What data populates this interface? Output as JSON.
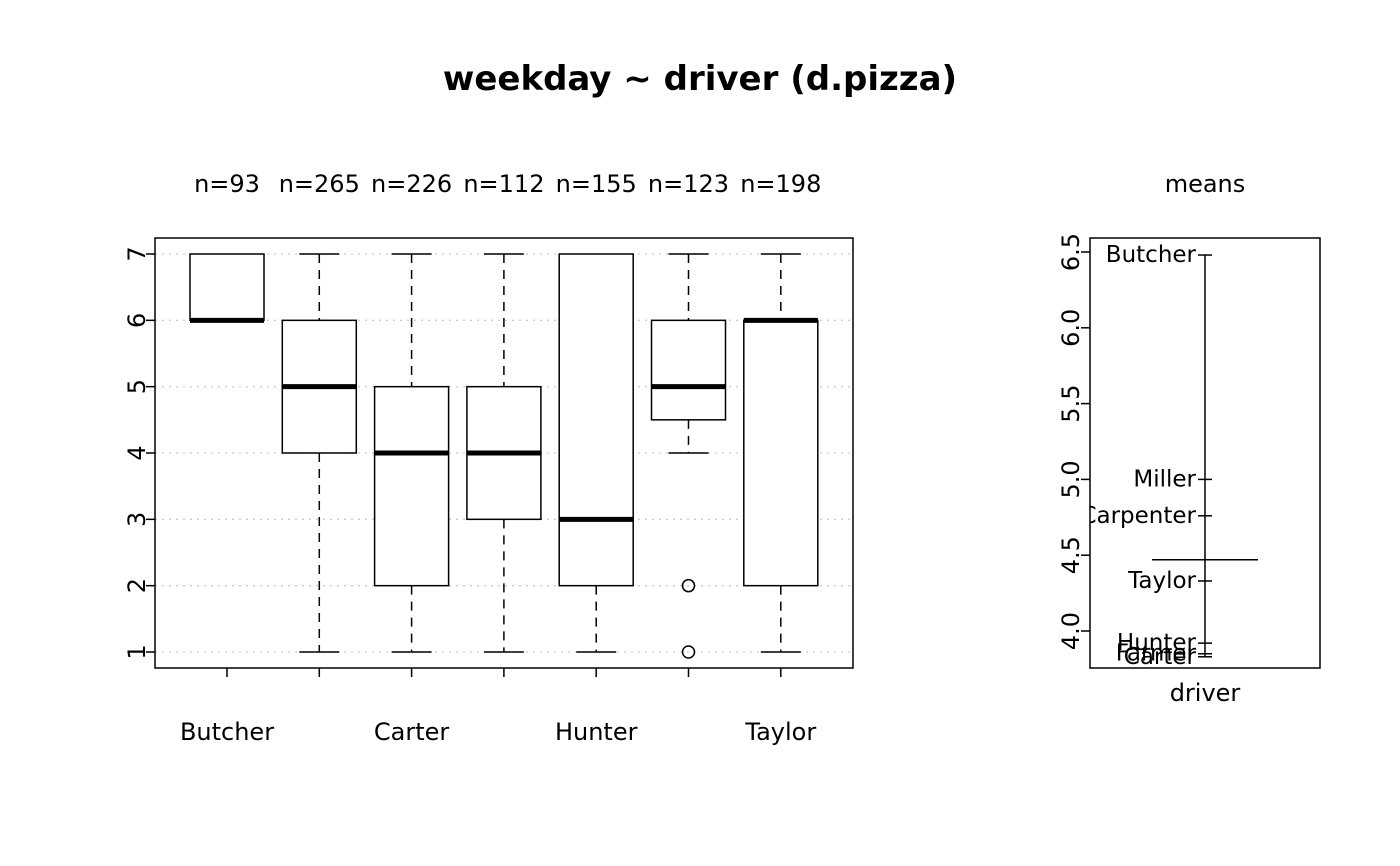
{
  "title": "weekday ~ driver (d.pizza)",
  "chart_data": [
    {
      "type": "boxplot",
      "title": "weekday ~ driver (d.pizza)",
      "categories": [
        "Butcher",
        "Carpenter",
        "Carter",
        "Farmer",
        "Hunter",
        "Miller",
        "Taylor"
      ],
      "x_tick_labels_shown": [
        "Butcher",
        "",
        "Carter",
        "",
        "Hunter",
        "",
        "Taylor"
      ],
      "count_labels": [
        "n=93",
        "n=265",
        "n=226",
        "n=112",
        "n=155",
        "n=123",
        "n=198"
      ],
      "ylim": [
        1,
        7
      ],
      "ytick_values": [
        1,
        2,
        3,
        4,
        5,
        6,
        7
      ],
      "ytick_labels": [
        "1",
        "2",
        "3",
        "4",
        "5",
        "6",
        "7"
      ],
      "grid": "dotted-horizontal",
      "boxes": [
        {
          "group": "Butcher",
          "n": 93,
          "q1": 6,
          "median": 6,
          "q3": 7,
          "whisker_low": 6,
          "whisker_high": 7,
          "outliers": []
        },
        {
          "group": "Carpenter",
          "n": 265,
          "q1": 4,
          "median": 5,
          "q3": 6,
          "whisker_low": 1,
          "whisker_high": 7,
          "outliers": []
        },
        {
          "group": "Carter",
          "n": 226,
          "q1": 2,
          "median": 4,
          "q3": 5,
          "whisker_low": 1,
          "whisker_high": 7,
          "outliers": []
        },
        {
          "group": "Farmer",
          "n": 112,
          "q1": 3,
          "median": 4,
          "q3": 5,
          "whisker_low": 1,
          "whisker_high": 7,
          "outliers": []
        },
        {
          "group": "Hunter",
          "n": 155,
          "q1": 2,
          "median": 3,
          "q3": 7,
          "whisker_low": 1,
          "whisker_high": 7,
          "outliers": []
        },
        {
          "group": "Miller",
          "n": 123,
          "q1": 4.5,
          "median": 5,
          "q3": 6,
          "whisker_low": 4,
          "whisker_high": 7,
          "outliers": [
            2,
            1
          ]
        },
        {
          "group": "Taylor",
          "n": 198,
          "q1": 2,
          "median": 6,
          "q3": 6,
          "whisker_low": 1,
          "whisker_high": 7,
          "outliers": []
        }
      ]
    },
    {
      "type": "means",
      "panel_title": "means",
      "xlabel": "driver",
      "ylim": [
        3.8,
        6.5
      ],
      "ytick_values": [
        4.0,
        4.5,
        5.0,
        5.5,
        6.0,
        6.5
      ],
      "ytick_labels": [
        "4.0",
        "4.5",
        "5.0",
        "5.5",
        "6.0",
        "6.5"
      ],
      "means": [
        {
          "group": "Butcher",
          "value": 6.48
        },
        {
          "group": "Miller",
          "value": 5.0
        },
        {
          "group": "Carpenter",
          "value": 4.76
        },
        {
          "group": "Taylor",
          "value": 4.33
        },
        {
          "group": "Hunter",
          "value": 3.92
        },
        {
          "group": "Farmer",
          "value": 3.85
        },
        {
          "group": "Carter",
          "value": 3.83
        }
      ],
      "grand_mean": 4.47,
      "range_line": [
        3.83,
        6.48
      ]
    }
  ]
}
